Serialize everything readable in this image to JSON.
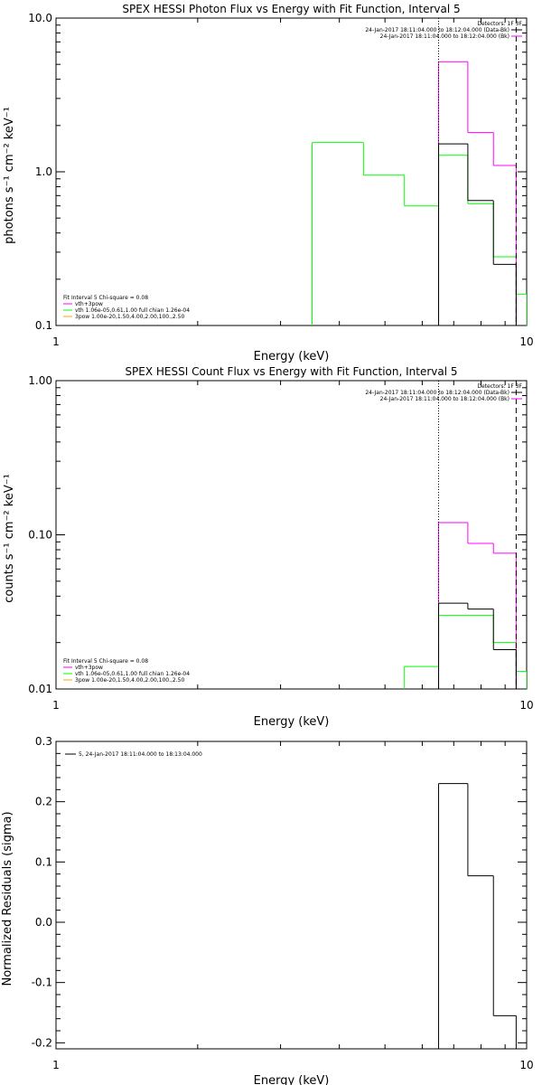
{
  "colors": {
    "data": "#000000",
    "background": "#000000",
    "model_total": "#ff00ff",
    "component_vth": "#00ff00",
    "component_3pow": "#ffa500",
    "axes": "#000000"
  },
  "chart_data": [
    {
      "type": "line",
      "title": "SPEX HESSI Photon Flux vs Energy with Fit Function, Interval 5",
      "xlabel": "Energy (keV)",
      "ylabel": "photons s⁻¹ cm⁻² keV⁻¹",
      "x_scale": "log",
      "y_scale": "log",
      "xlim": [
        1,
        10
      ],
      "ylim": [
        0.1,
        10
      ],
      "x_ticks": [
        {
          "value": 1,
          "label": "1"
        },
        {
          "value": 10,
          "label": "10"
        }
      ],
      "y_ticks": [
        {
          "value": 0.1,
          "label": "0.1"
        },
        {
          "value": 1,
          "label": "1.0"
        },
        {
          "value": 10,
          "label": "10.0"
        }
      ],
      "legend": {
        "placement": "top-right",
        "header": "Detectors: 1F 3F",
        "entries": [
          "24-Jan-2017 18:11:04.000 to 18:12:04.000 (Data-Bk)",
          "24-Jan-2017 18:11:04.000 to 18:12:04.000 (Bk)"
        ]
      },
      "fit_legend": {
        "placement": "bottom-left",
        "header": "Fit Interval 5   Chi-square = 0.08",
        "entries": [
          "vth+3pow",
          "vth 1.06e-05,0.61,1.00  full chian 1.26e-04",
          "3pow 1.00e-20,1.50,4.00,2.00,100.,2.50"
        ]
      },
      "vlines": [
        {
          "x": 6.5,
          "style": "dotted"
        },
        {
          "x": 9.5,
          "style": "dashed"
        }
      ],
      "series": [
        {
          "role": "data",
          "edges": [
            6.5,
            7.5,
            8.5,
            9.5
          ],
          "values": [
            1.52,
            0.65,
            0.25
          ]
        },
        {
          "role": "model_total",
          "edges": [
            6.5,
            7.5,
            8.5,
            9.5
          ],
          "values": [
            5.2,
            1.8,
            1.1
          ]
        },
        {
          "role": "component_vth",
          "edges": [
            3.5,
            4.5,
            5.5,
            6.5,
            7.5,
            8.5,
            9.5,
            10
          ],
          "values": [
            1.55,
            0.95,
            0.6,
            1.28,
            0.62,
            0.28,
            0.16
          ]
        }
      ]
    },
    {
      "type": "line",
      "title": "SPEX HESSI Count Flux vs Energy with Fit Function, Interval 5",
      "xlabel": "Energy (keV)",
      "ylabel": "counts s⁻¹ cm⁻² keV⁻¹",
      "x_scale": "log",
      "y_scale": "log",
      "xlim": [
        1,
        10
      ],
      "ylim": [
        0.01,
        1
      ],
      "x_ticks": [
        {
          "value": 1,
          "label": "1"
        },
        {
          "value": 10,
          "label": "10"
        }
      ],
      "y_ticks": [
        {
          "value": 0.01,
          "label": "0.01"
        },
        {
          "value": 0.1,
          "label": "0.10"
        },
        {
          "value": 1,
          "label": "1.00"
        }
      ],
      "legend": {
        "placement": "top-right",
        "header": "Detectors: 1F 3F",
        "entries": [
          "24-Jan-2017 18:11:04.000 to 18:12:04.000 (Data-Bk)",
          "24-Jan-2017 18:11:04.000 to 18:12:04.000 (Bk)"
        ]
      },
      "fit_legend": {
        "placement": "bottom-left",
        "header": "Fit Interval 5   Chi-square = 0.08",
        "entries": [
          "vth+3pow",
          "vth 1.06e-05,0.61,1.00  full chian 1.26e-04",
          "3pow 1.00e-20,1.50,4.00,2.00,100.,2.50"
        ]
      },
      "vlines": [
        {
          "x": 6.5,
          "style": "dotted"
        },
        {
          "x": 9.5,
          "style": "dashed"
        }
      ],
      "series": [
        {
          "role": "data",
          "edges": [
            6.5,
            7.5,
            8.5,
            9.5
          ],
          "values": [
            0.036,
            0.033,
            0.018
          ]
        },
        {
          "role": "model_total",
          "edges": [
            6.5,
            7.5,
            8.5,
            9.5
          ],
          "values": [
            0.12,
            0.088,
            0.076
          ]
        },
        {
          "role": "component_vth",
          "edges": [
            5.5,
            6.5,
            7.5,
            8.5,
            9.5,
            10
          ],
          "values": [
            0.014,
            0.03,
            0.03,
            0.02,
            0.013
          ]
        }
      ]
    },
    {
      "type": "line",
      "title": "",
      "xlabel": "Energy (keV)",
      "ylabel": "Normalized Residuals (sigma)",
      "x_scale": "log",
      "y_scale": "linear",
      "xlim": [
        1,
        10
      ],
      "ylim": [
        -0.21,
        0.3
      ],
      "x_ticks": [
        {
          "value": 1,
          "label": "1"
        },
        {
          "value": 10,
          "label": "10"
        }
      ],
      "y_ticks": [
        {
          "value": -0.2,
          "label": "-0.2"
        },
        {
          "value": -0.1,
          "label": "-0.1"
        },
        {
          "value": 0,
          "label": "0.0"
        },
        {
          "value": 0.1,
          "label": "0.1"
        },
        {
          "value": 0.2,
          "label": "0.2"
        },
        {
          "value": 0.3,
          "label": "0.3"
        }
      ],
      "legend": {
        "placement": "top-left",
        "header": "",
        "entries": [
          "5, 24-Jan-2017 18:11:04.000 to 18:13:04.000"
        ]
      },
      "vlines": [],
      "series": [
        {
          "role": "data",
          "edges": [
            6.5,
            7.5,
            8.5,
            9.5
          ],
          "values": [
            0.23,
            0.077,
            -0.155
          ]
        }
      ]
    }
  ]
}
